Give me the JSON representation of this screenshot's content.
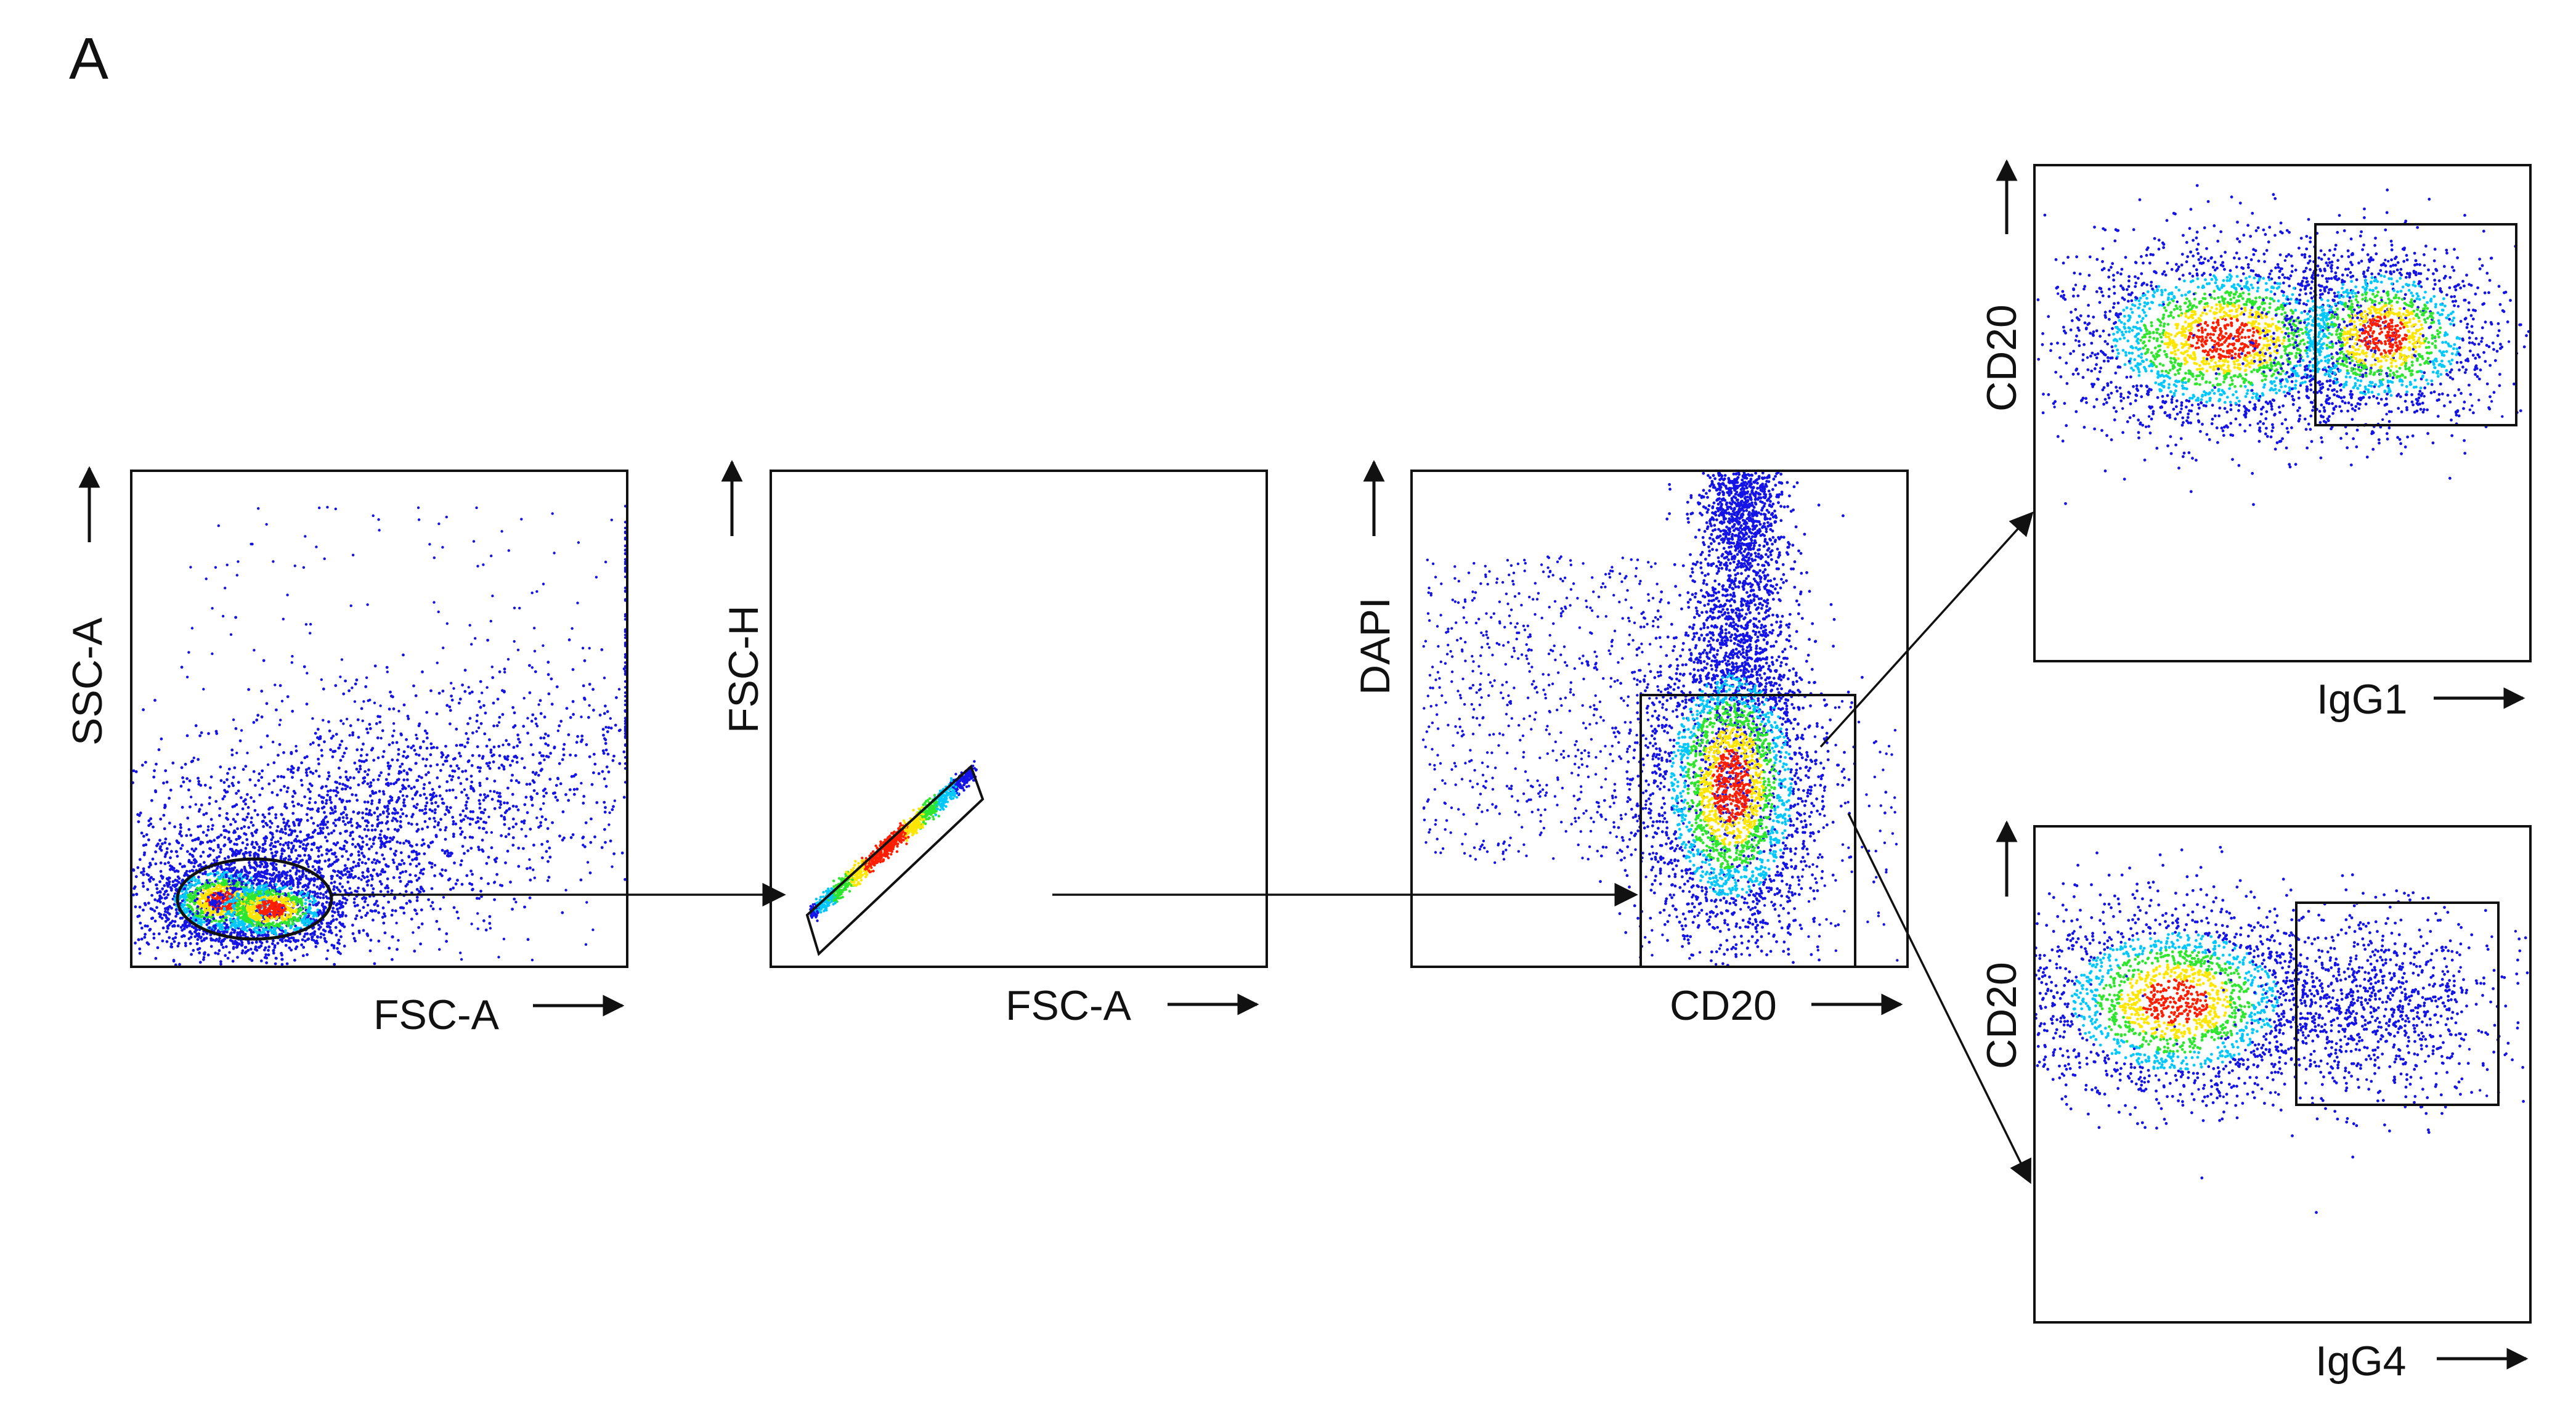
{
  "panel_label": "A",
  "plots": [
    {
      "id": "scatter",
      "x_label": "FSC-A",
      "y_label": "SSC-A"
    },
    {
      "id": "singlets",
      "x_label": "FSC-A",
      "y_label": "FSC-H"
    },
    {
      "id": "live-cd20",
      "x_label": "CD20",
      "y_label": "DAPI"
    },
    {
      "id": "igg1",
      "x_label": "IgG1",
      "y_label": "CD20"
    },
    {
      "id": "igg4",
      "x_label": "IgG4",
      "y_label": "CD20"
    }
  ],
  "colors": {
    "density_low": "#1414e6",
    "density_mid_low": "#00c8ff",
    "density_mid": "#2ee62e",
    "density_mid_high": "#ffe600",
    "density_high": "#ff1e00",
    "axis": "#111111"
  }
}
